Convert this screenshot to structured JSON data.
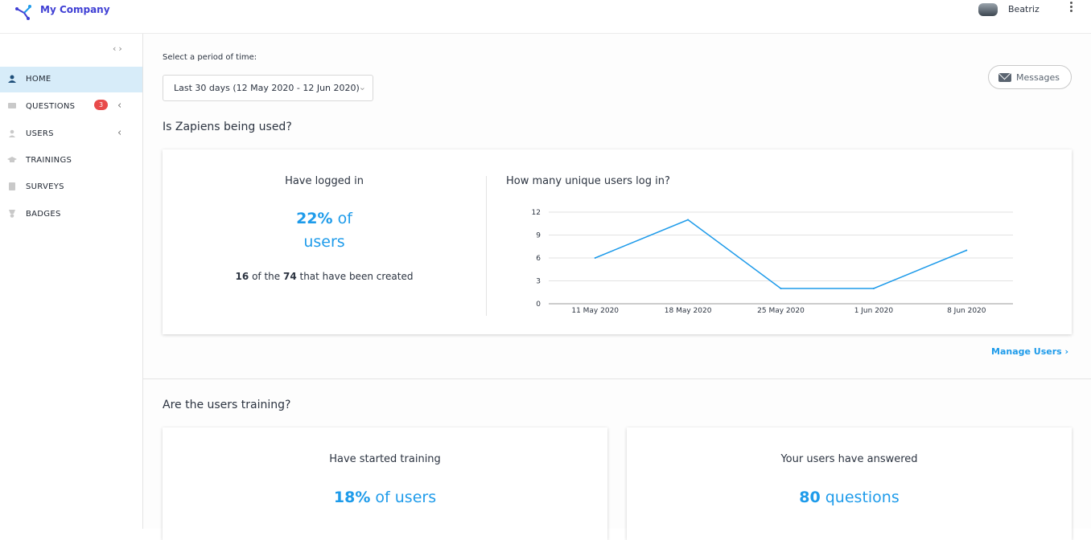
{
  "header": {
    "brand": "My Company",
    "username": "Beatriz"
  },
  "sidebar": {
    "items": [
      {
        "label": "HOME",
        "icon": "home-user-icon",
        "active": true
      },
      {
        "label": "QUESTIONS",
        "icon": "questions-icon",
        "badge": "3",
        "expandable": true
      },
      {
        "label": "USERS",
        "icon": "user-icon",
        "expandable": true
      },
      {
        "label": "TRAININGS",
        "icon": "graduation-cap-icon"
      },
      {
        "label": "SURVEYS",
        "icon": "clipboard-icon"
      },
      {
        "label": "BADGES",
        "icon": "badge-icon"
      }
    ]
  },
  "period": {
    "label": "Select a period of time:",
    "selected": "Last 30 days (12 May 2020 - 12 Jun 2020)"
  },
  "messages_label": "Messages",
  "usage": {
    "title": "Is Zapiens being used?",
    "logged_title": "Have logged in",
    "logged_pct": "22%",
    "logged_of": "of",
    "logged_users": "users",
    "logged_count": "16",
    "logged_mid": "of the",
    "logged_total": "74",
    "logged_suffix": "that have been created",
    "chart_title": "How many unique users log in?",
    "manage_link": "Manage Users"
  },
  "training": {
    "title": "Are the users training?",
    "started_title": "Have started training",
    "started_pct": "18%",
    "started_suffix": "of users",
    "answered_title": "Your users have answered",
    "answered_count": "80",
    "answered_suffix": "questions"
  },
  "colors": {
    "accent": "#1e9bea",
    "brand": "#3f3fd4",
    "badge": "#e84a4a"
  },
  "chart_data": {
    "type": "line",
    "title": "How many unique users log in?",
    "xlabel": "",
    "ylabel": "",
    "categories": [
      "11 May 2020",
      "18 May 2020",
      "25 May 2020",
      "1 Jun 2020",
      "8 Jun 2020"
    ],
    "values": [
      6,
      11,
      2,
      2,
      7
    ],
    "ylim": [
      0,
      12
    ],
    "yticks": [
      0,
      3,
      6,
      9,
      12
    ],
    "grid": true,
    "color": "#1e9bea"
  }
}
